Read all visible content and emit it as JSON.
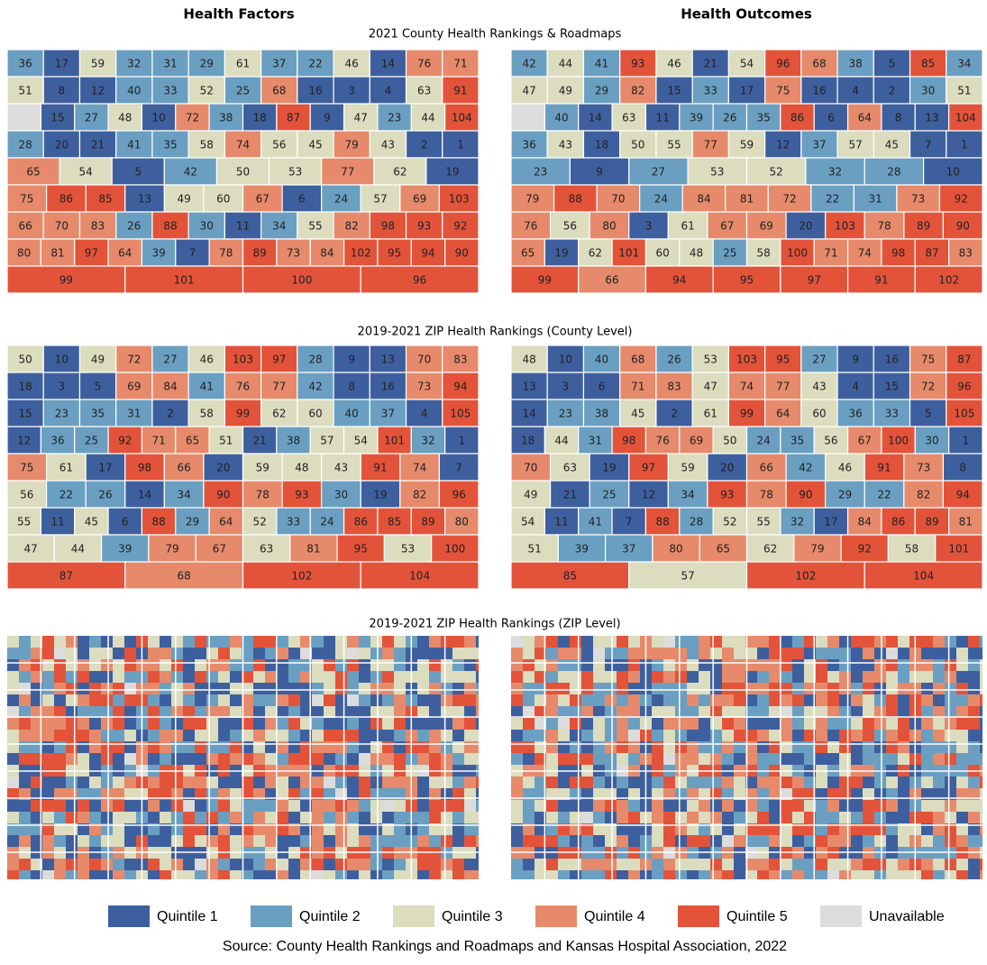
{
  "column_titles": [
    "Health Factors",
    "Health Outcomes"
  ],
  "sections": [
    {
      "title": "2021 County Health Rankings & Roadmaps",
      "maps": [
        {
          "rows": [
            [
              36,
              17,
              59,
              32,
              31,
              29,
              61,
              37,
              22,
              46,
              14,
              76,
              71
            ],
            [
              51,
              8,
              12,
              40,
              33,
              52,
              25,
              68,
              16,
              3,
              4,
              63,
              91
            ],
            [
              null,
              15,
              27,
              48,
              10,
              72,
              38,
              18,
              87,
              9,
              47,
              23,
              44,
              104
            ],
            [
              28,
              20,
              21,
              41,
              35,
              58,
              74,
              56,
              45,
              79,
              43,
              2,
              1
            ],
            [
              65,
              54,
              5,
              42,
              50,
              53,
              77,
              62,
              19
            ],
            [
              75,
              86,
              85,
              13,
              49,
              60,
              67,
              6,
              24,
              57,
              69,
              103
            ],
            [
              66,
              70,
              83,
              26,
              88,
              30,
              11,
              34,
              55,
              82,
              98,
              93,
              92
            ],
            [
              80,
              81,
              97,
              64,
              39,
              7,
              78,
              89,
              73,
              84,
              102,
              95,
              94,
              90
            ],
            [
              99,
              101,
              100,
              96
            ]
          ]
        },
        {
          "rows": [
            [
              42,
              44,
              41,
              93,
              46,
              21,
              54,
              96,
              68,
              38,
              5,
              85,
              34
            ],
            [
              47,
              49,
              29,
              82,
              15,
              33,
              17,
              75,
              16,
              4,
              2,
              30,
              51
            ],
            [
              null,
              40,
              14,
              63,
              11,
              39,
              26,
              35,
              86,
              6,
              64,
              8,
              13,
              104
            ],
            [
              36,
              43,
              18,
              50,
              55,
              77,
              59,
              12,
              37,
              57,
              45,
              7,
              1
            ],
            [
              23,
              9,
              27,
              53,
              52,
              32,
              28,
              10
            ],
            [
              79,
              88,
              70,
              24,
              84,
              81,
              72,
              22,
              31,
              73,
              92
            ],
            [
              76,
              56,
              80,
              3,
              61,
              67,
              69,
              20,
              103,
              78,
              89,
              90
            ],
            [
              65,
              19,
              62,
              101,
              60,
              48,
              25,
              58,
              100,
              71,
              74,
              98,
              87,
              83
            ],
            [
              99,
              66,
              94,
              95,
              97,
              91,
              102
            ]
          ]
        }
      ]
    },
    {
      "title": "2019-2021 ZIP Health Rankings (County Level)",
      "maps": [
        {
          "rows": [
            [
              50,
              10,
              49,
              72,
              27,
              46,
              103,
              97,
              28,
              9,
              13,
              70,
              83
            ],
            [
              18,
              3,
              5,
              69,
              84,
              41,
              76,
              77,
              42,
              8,
              16,
              73,
              94
            ],
            [
              15,
              23,
              35,
              31,
              2,
              58,
              99,
              62,
              60,
              40,
              37,
              4,
              105
            ],
            [
              12,
              36,
              25,
              92,
              71,
              65,
              51,
              21,
              38,
              57,
              54,
              101,
              32,
              1
            ],
            [
              75,
              61,
              17,
              98,
              66,
              20,
              59,
              48,
              43,
              91,
              74,
              7
            ],
            [
              56,
              22,
              26,
              14,
              34,
              90,
              78,
              93,
              30,
              19,
              82,
              96
            ],
            [
              55,
              11,
              45,
              6,
              88,
              29,
              64,
              52,
              33,
              24,
              86,
              85,
              89,
              80
            ],
            [
              47,
              44,
              39,
              79,
              67,
              63,
              81,
              95,
              53,
              100
            ],
            [
              87,
              68,
              102,
              104
            ]
          ]
        },
        {
          "rows": [
            [
              48,
              10,
              40,
              68,
              26,
              53,
              103,
              95,
              27,
              9,
              16,
              75,
              87
            ],
            [
              13,
              3,
              6,
              71,
              83,
              47,
              74,
              77,
              43,
              4,
              15,
              72,
              96
            ],
            [
              14,
              23,
              38,
              45,
              2,
              61,
              99,
              64,
              60,
              36,
              33,
              5,
              105
            ],
            [
              18,
              44,
              31,
              98,
              76,
              69,
              50,
              24,
              35,
              56,
              67,
              100,
              30,
              1
            ],
            [
              70,
              63,
              19,
              97,
              59,
              20,
              66,
              42,
              46,
              91,
              73,
              8
            ],
            [
              49,
              21,
              25,
              12,
              34,
              93,
              78,
              90,
              29,
              22,
              82,
              94
            ],
            [
              54,
              11,
              41,
              7,
              88,
              28,
              52,
              55,
              32,
              17,
              84,
              86,
              89,
              81
            ],
            [
              51,
              39,
              37,
              80,
              65,
              62,
              79,
              92,
              58,
              101
            ],
            [
              85,
              57,
              102,
              104
            ]
          ]
        }
      ]
    },
    {
      "title": "2019-2021 ZIP Health Rankings (ZIP Level)",
      "maps": []
    }
  ],
  "legend": [
    {
      "name": "Quintile 1",
      "color": "#3e5f9e"
    },
    {
      "name": "Quintile 2",
      "color": "#6a9fc2"
    },
    {
      "name": "Quintile 3",
      "color": "#dcdcbf"
    },
    {
      "name": "Quintile 4",
      "color": "#e68a6b"
    },
    {
      "name": "Quintile 5",
      "color": "#e3533a"
    },
    {
      "name": "Unavailable",
      "color": "#dcdcdc"
    }
  ],
  "source": "Source: County Health Rankings and Roadmaps and Kansas Hospital Association, 2022"
}
